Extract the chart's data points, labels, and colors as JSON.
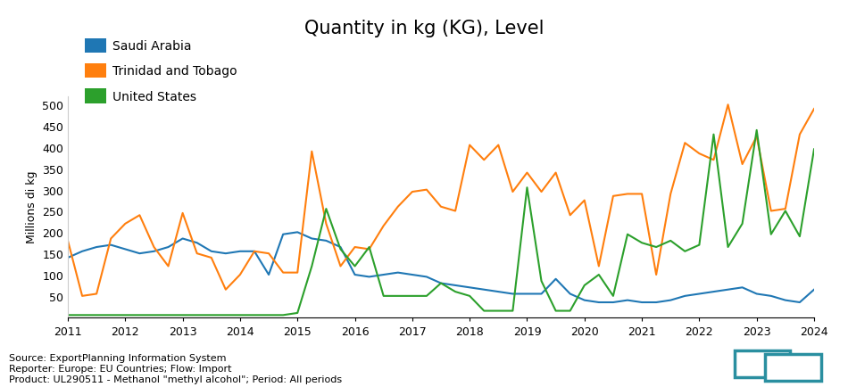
{
  "title": "Quantity in kg (KG), Level",
  "ylabel": "Millions di kg",
  "legend": [
    "Saudi Arabia",
    "Trinidad and Tobago",
    "United States"
  ],
  "colors": [
    "#1f77b4",
    "#ff7f0e",
    "#2ca02c"
  ],
  "footer_lines": [
    "Source: ExportPlanning Information System",
    "Reporter: Europe: EU Countries; Flow: Import",
    "Product: UL290511 - Methanol \"methyl alcohol\"; Period: All periods"
  ],
  "ylim": [
    0,
    520
  ],
  "yticks": [
    50,
    100,
    150,
    200,
    250,
    300,
    350,
    400,
    450,
    500
  ],
  "saudi_arabia": {
    "x": [
      2011.0,
      2011.25,
      2011.5,
      2011.75,
      2012.0,
      2012.25,
      2012.5,
      2012.75,
      2013.0,
      2013.25,
      2013.5,
      2013.75,
      2014.0,
      2014.25,
      2014.5,
      2014.75,
      2015.0,
      2015.25,
      2015.5,
      2015.75,
      2016.0,
      2016.25,
      2016.5,
      2016.75,
      2017.0,
      2017.25,
      2017.5,
      2017.75,
      2018.0,
      2018.25,
      2018.5,
      2018.75,
      2019.0,
      2019.25,
      2019.5,
      2019.75,
      2020.0,
      2020.25,
      2020.5,
      2020.75,
      2021.0,
      2021.25,
      2021.5,
      2021.75,
      2022.0,
      2022.25,
      2022.5,
      2022.75,
      2023.0,
      2023.25,
      2023.5,
      2023.75,
      2024.0
    ],
    "y": [
      140,
      155,
      165,
      170,
      160,
      150,
      155,
      165,
      185,
      175,
      155,
      150,
      155,
      155,
      100,
      195,
      200,
      185,
      180,
      165,
      100,
      95,
      100,
      105,
      100,
      95,
      80,
      75,
      70,
      65,
      60,
      55,
      55,
      55,
      90,
      55,
      40,
      35,
      35,
      40,
      35,
      35,
      40,
      50,
      55,
      60,
      65,
      70,
      55,
      50,
      40,
      35,
      65
    ]
  },
  "trinidad": {
    "x": [
      2011.0,
      2011.25,
      2011.5,
      2011.75,
      2012.0,
      2012.25,
      2012.5,
      2012.75,
      2013.0,
      2013.25,
      2013.5,
      2013.75,
      2014.0,
      2014.25,
      2014.5,
      2014.75,
      2015.0,
      2015.25,
      2015.5,
      2015.75,
      2016.0,
      2016.25,
      2016.5,
      2016.75,
      2017.0,
      2017.25,
      2017.5,
      2017.75,
      2018.0,
      2018.25,
      2018.5,
      2018.75,
      2019.0,
      2019.25,
      2019.5,
      2019.75,
      2020.0,
      2020.25,
      2020.5,
      2020.75,
      2021.0,
      2021.25,
      2021.5,
      2021.75,
      2022.0,
      2022.25,
      2022.5,
      2022.75,
      2023.0,
      2023.25,
      2023.5,
      2023.75,
      2024.0
    ],
    "y": [
      180,
      50,
      55,
      185,
      220,
      240,
      165,
      120,
      245,
      150,
      140,
      65,
      100,
      155,
      150,
      105,
      105,
      390,
      220,
      120,
      165,
      160,
      215,
      260,
      295,
      300,
      260,
      250,
      405,
      370,
      405,
      295,
      340,
      295,
      340,
      240,
      275,
      120,
      285,
      290,
      290,
      100,
      290,
      410,
      385,
      370,
      500,
      360,
      425,
      250,
      255,
      430,
      490
    ]
  },
  "united_states": {
    "x": [
      2011.0,
      2011.25,
      2011.5,
      2011.75,
      2012.0,
      2012.25,
      2012.5,
      2012.75,
      2013.0,
      2013.25,
      2013.5,
      2013.75,
      2014.0,
      2014.25,
      2014.5,
      2014.75,
      2015.0,
      2015.25,
      2015.5,
      2015.75,
      2016.0,
      2016.25,
      2016.5,
      2016.75,
      2017.0,
      2017.25,
      2017.5,
      2017.75,
      2018.0,
      2018.25,
      2018.5,
      2018.75,
      2019.0,
      2019.25,
      2019.5,
      2019.75,
      2020.0,
      2020.25,
      2020.5,
      2020.75,
      2021.0,
      2021.25,
      2021.5,
      2021.75,
      2022.0,
      2022.25,
      2022.5,
      2022.75,
      2023.0,
      2023.25,
      2023.5,
      2023.75,
      2024.0
    ],
    "y": [
      5,
      5,
      5,
      5,
      5,
      5,
      5,
      5,
      5,
      5,
      5,
      5,
      5,
      5,
      5,
      5,
      10,
      120,
      255,
      160,
      120,
      165,
      50,
      50,
      50,
      50,
      80,
      60,
      50,
      15,
      15,
      15,
      305,
      85,
      15,
      15,
      75,
      100,
      50,
      195,
      175,
      165,
      180,
      155,
      170,
      430,
      165,
      220,
      440,
      195,
      250,
      190,
      395
    ]
  }
}
